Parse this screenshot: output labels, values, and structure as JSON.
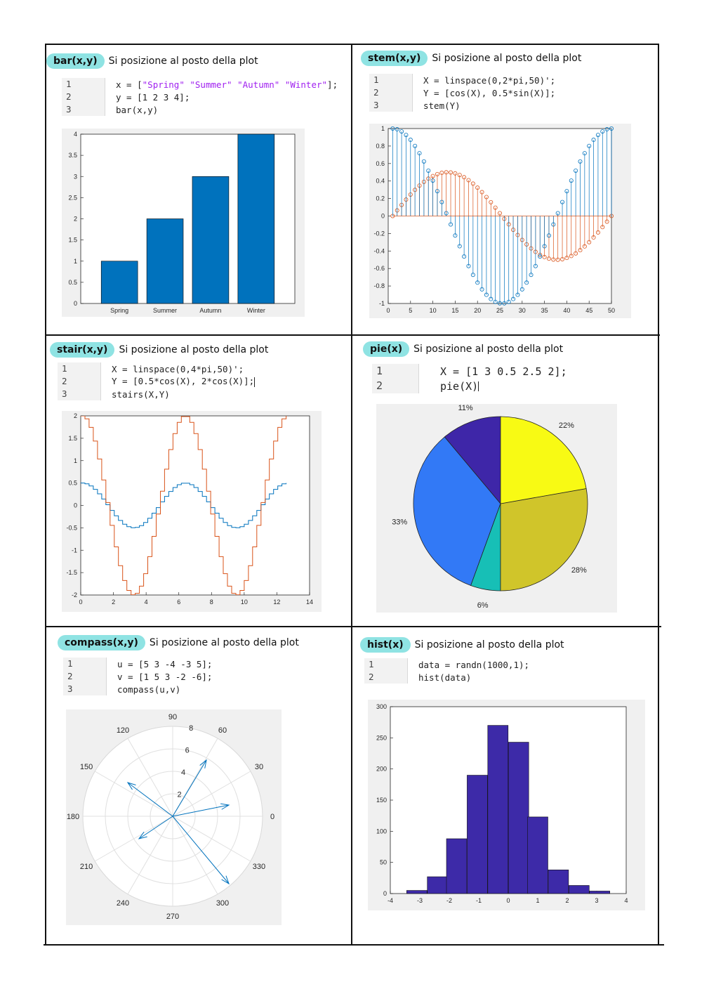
{
  "panels": [
    {
      "id": "bar",
      "tag": "bar(x,y)",
      "subtitle": "Si posizione al posto della plot",
      "code": [
        {
          "n": "1",
          "parts": [
            {
              "t": "x = ["
            },
            {
              "t": "\"Spring\" \"Summer\" \"Autumn\" \"Winter\"",
              "s": 1
            },
            {
              "t": "];"
            }
          ]
        },
        {
          "n": "2",
          "parts": [
            {
              "t": "y = [1 2 3 4];"
            }
          ]
        },
        {
          "n": "3",
          "parts": [
            {
              "t": "bar(x,y)"
            }
          ]
        }
      ]
    },
    {
      "id": "stem",
      "tag": "stem(x,y)",
      "subtitle": "Si posizione al posto della plot",
      "code": [
        {
          "n": "1",
          "parts": [
            {
              "t": "X = linspace(0,2*pi,50)';"
            }
          ]
        },
        {
          "n": "2",
          "parts": [
            {
              "t": "Y = [cos(X), 0.5*sin(X)];"
            }
          ]
        },
        {
          "n": "3",
          "parts": [
            {
              "t": "stem(Y)"
            }
          ]
        }
      ]
    },
    {
      "id": "stair",
      "tag": "stair(x,y)",
      "subtitle": "Si posizione al posto della plot",
      "code": [
        {
          "n": "1",
          "parts": [
            {
              "t": "X = linspace(0,4*pi,50)';"
            }
          ]
        },
        {
          "n": "2",
          "parts": [
            {
              "t": "Y = [0.5*cos(X), 2*cos(X)];"
            }
          ],
          "caret": true
        },
        {
          "n": "3",
          "parts": [
            {
              "t": "stairs(X,Y)"
            }
          ]
        }
      ]
    },
    {
      "id": "pie",
      "tag": "pie(x)",
      "subtitle": "Si posizione al posto della plot",
      "code": [
        {
          "n": "1",
          "parts": [
            {
              "t": "X = [1 3 0.5 2.5 2];"
            }
          ]
        },
        {
          "n": "2",
          "parts": [
            {
              "t": "pie(X)"
            }
          ],
          "caret": true
        }
      ]
    },
    {
      "id": "compass",
      "tag": "compass(x,y)",
      "subtitle": "Si posizione al posto della plot",
      "code": [
        {
          "n": "1",
          "parts": [
            {
              "t": "u = [5 3 -4 -3 5];"
            }
          ]
        },
        {
          "n": "2",
          "parts": [
            {
              "t": "v = [1 5 3 -2 -6];"
            }
          ]
        },
        {
          "n": "3",
          "parts": [
            {
              "t": "compass(u,v)"
            }
          ]
        }
      ]
    },
    {
      "id": "hist",
      "tag": "hist(x)",
      "subtitle": "Si posizione al posto della plot",
      "code": [
        {
          "n": "1",
          "parts": [
            {
              "t": "data = randn(1000,1);"
            }
          ]
        },
        {
          "n": "2",
          "parts": [
            {
              "t": "hist(data)"
            }
          ]
        }
      ]
    }
  ],
  "colors": {
    "matlab_blue": "#0072bd",
    "matlab_orange": "#d95319",
    "hist_fill": "#3d2aa8",
    "highlight": "#8fe3e3"
  },
  "chart_data": [
    {
      "type": "bar",
      "categories": [
        "Spring",
        "Summer",
        "Autumn",
        "Winter"
      ],
      "values": [
        1,
        2,
        3,
        4
      ],
      "ylim": [
        0,
        4
      ],
      "yticks": [
        "0",
        "0.5",
        "1",
        "1.5",
        "2",
        "2.5",
        "3",
        "3.5",
        "4"
      ]
    },
    {
      "type": "stem",
      "series_formulas": [
        "cos(X)",
        "0.5*sin(X)"
      ],
      "n_points": 50,
      "xlim": [
        0,
        50
      ],
      "ylim": [
        -1,
        1
      ],
      "xticks": [
        "0",
        "5",
        "10",
        "15",
        "20",
        "25",
        "30",
        "35",
        "40",
        "45",
        "50"
      ],
      "yticks": [
        "-1",
        "-0.8",
        "-0.6",
        "-0.4",
        "-0.2",
        "0",
        "0.2",
        "0.4",
        "0.6",
        "0.8",
        "1"
      ]
    },
    {
      "type": "line",
      "style": "stairs",
      "series_formulas": [
        "0.5*cos(X)",
        "2*cos(X)"
      ],
      "n_points": 50,
      "xlim": [
        0,
        14
      ],
      "ylim": [
        -2,
        2
      ],
      "xticks": [
        "0",
        "2",
        "4",
        "6",
        "8",
        "10",
        "12",
        "14"
      ],
      "yticks": [
        "-2",
        "-1.5",
        "-1",
        "-0.5",
        "0",
        "0.5",
        "1",
        "1.5",
        "2"
      ]
    },
    {
      "type": "pie",
      "values": [
        1,
        3,
        0.5,
        2.5,
        2
      ],
      "labels": [
        "11%",
        "33%",
        "6%",
        "28%",
        "22%"
      ],
      "slice_colors": [
        "#3e26a8",
        "#3279f6",
        "#17bfb6",
        "#d0c52a",
        "#f8fa14"
      ]
    },
    {
      "type": "compass",
      "u": [
        5,
        3,
        -4,
        -3,
        5
      ],
      "v": [
        1,
        5,
        3,
        -2,
        -6
      ],
      "rmax": 8,
      "radial_ticks": [
        "2",
        "4",
        "6",
        "8"
      ],
      "angle_ticks": [
        "0",
        "30",
        "60",
        "90",
        "120",
        "150",
        "180",
        "210",
        "240",
        "270",
        "300",
        "330"
      ]
    },
    {
      "type": "bar",
      "style": "histogram",
      "bin_centers": [
        -3.1,
        -2.4,
        -1.75,
        -1.05,
        -0.35,
        0.35,
        1.0,
        1.7,
        2.4,
        3.1
      ],
      "values": [
        5,
        27,
        88,
        190,
        270,
        243,
        123,
        38,
        13,
        4
      ],
      "xlim": [
        -4,
        4
      ],
      "ylim": [
        0,
        300
      ],
      "xticks": [
        "-4",
        "-3",
        "-2",
        "-1",
        "0",
        "1",
        "2",
        "3",
        "4"
      ],
      "yticks": [
        "0",
        "50",
        "100",
        "150",
        "200",
        "250",
        "300"
      ]
    }
  ]
}
